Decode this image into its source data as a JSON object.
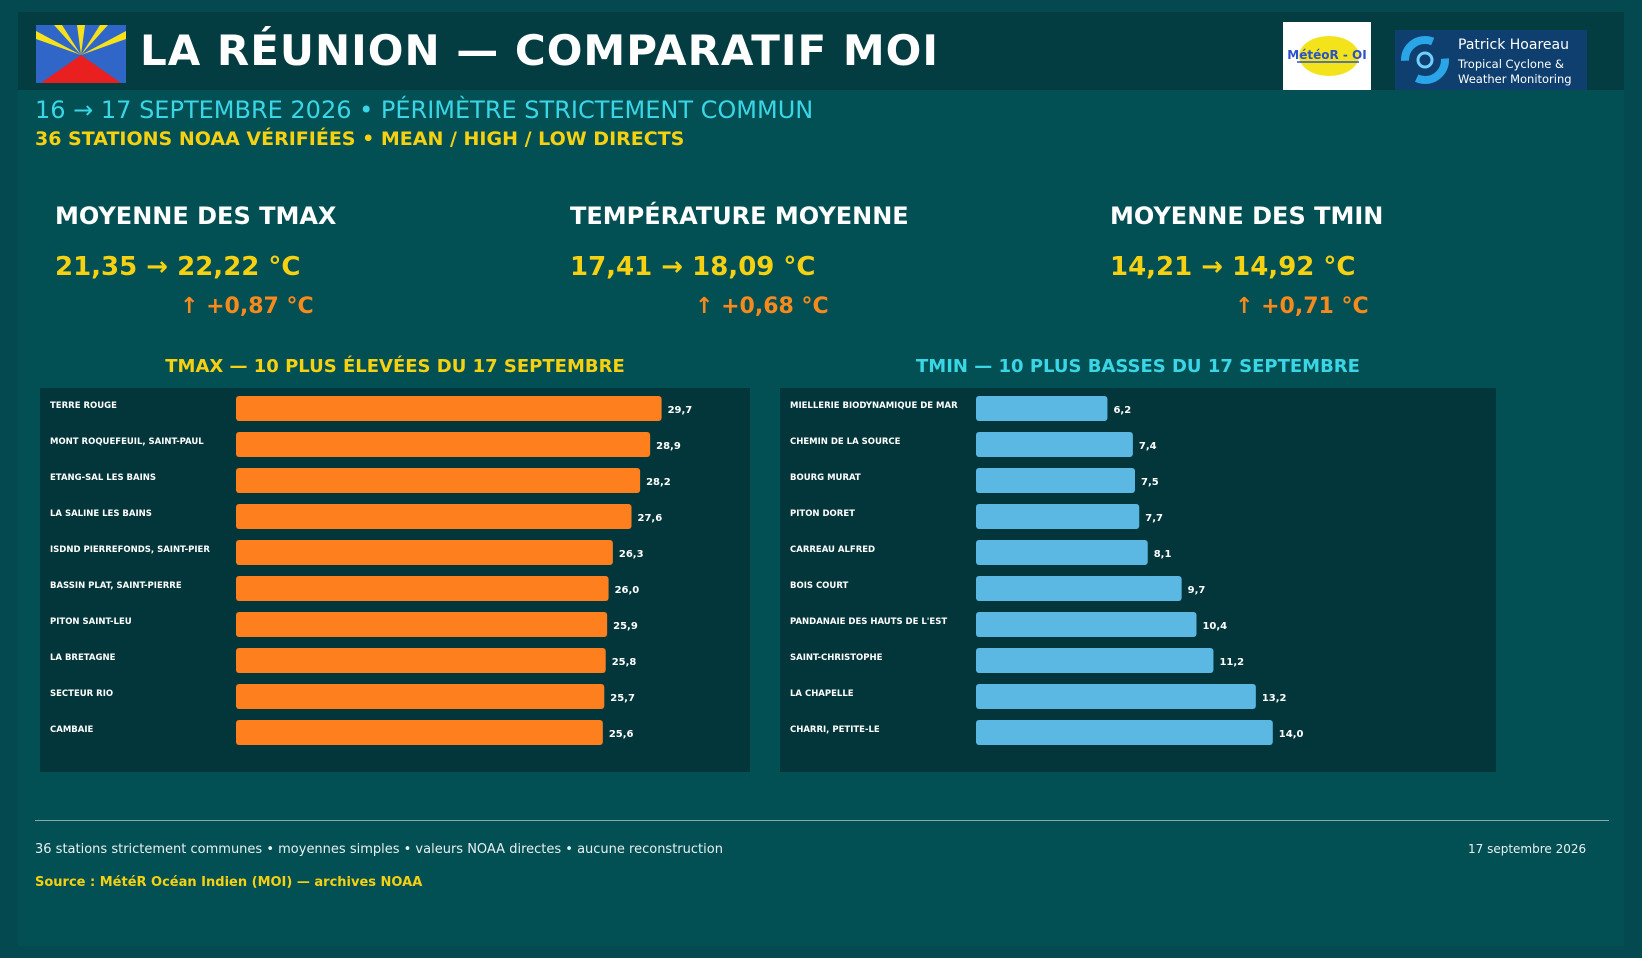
{
  "header": {
    "title": "LA RÉUNION — COMPARATIF MOI",
    "subtitle": "16 → 17 SEPTEMBRE 2026 • PÉRIMÈTRE STRICTEMENT COMMUN",
    "subtitle2": "36 STATIONS NOAA VÉRIFIÉES • MEAN / HIGH / LOW DIRECTS",
    "logo_moi_text": "MétéoR - OI",
    "logo_ph": {
      "name": "Patrick Hoareau",
      "tagline1": "Tropical Cyclone &",
      "tagline2": "Weather Monitoring"
    }
  },
  "kpis": [
    {
      "label": "MOYENNE DES TMAX",
      "value": "21,35 → 22,22 °C",
      "delta": "↑  +0,87 °C"
    },
    {
      "label": "TEMPÉRATURE MOYENNE",
      "value": "17,41 → 18,09 °C",
      "delta": "↑  +0,68 °C"
    },
    {
      "label": "MOYENNE DES TMIN",
      "value": "14,21 → 14,92 °C",
      "delta": "↑  +0,71 °C"
    }
  ],
  "colors": {
    "tmax_bar": "#fd7f1e",
    "tmin_bar": "#5bb8e2",
    "accent_yellow": "#f5d112",
    "accent_cyan": "#3ad6e6",
    "delta_orange": "#f78a1c"
  },
  "chart_data": [
    {
      "type": "bar",
      "orientation": "horizontal",
      "title": "TMAX — 10 PLUS ÉLEVÉES DU 17 SEPTEMBRE",
      "categories": [
        "TERRE ROUGE",
        "MONT ROQUEFEUIL, SAINT-PAUL",
        "ETANG-SAL LES BAINS",
        "LA SALINE LES BAINS",
        "ISDND PIERREFONDS, SAINT-PIER",
        "BASSIN PLAT, SAINT-PIERRE",
        "PITON SAINT-LEU",
        "LA BRETAGNE",
        "SECTEUR RIO",
        "CAMBAIE"
      ],
      "values": [
        29.7,
        28.9,
        28.2,
        27.6,
        26.3,
        26.0,
        25.9,
        25.8,
        25.7,
        25.6
      ],
      "labels": [
        "29,7",
        "28,9",
        "28,2",
        "27,6",
        "26,3",
        "26,0",
        "25,9",
        "25,8",
        "25,7",
        "25,6"
      ],
      "xlim": [
        0,
        35
      ]
    },
    {
      "type": "bar",
      "orientation": "horizontal",
      "title": "TMIN — 10 PLUS BASSES DU 17 SEPTEMBRE",
      "categories": [
        "MIELLERIE BIODYNAMIQUE DE MAR",
        "CHEMIN DE LA SOURCE",
        "BOURG MURAT",
        "PITON DORET",
        "CARREAU ALFRED",
        "BOIS COURT",
        "PANDANAIE DES HAUTS DE L'EST",
        "SAINT-CHRISTOPHE",
        "LA CHAPELLE",
        "CHARRI, PETITE-LE"
      ],
      "values": [
        6.2,
        7.4,
        7.5,
        7.7,
        8.1,
        9.7,
        10.4,
        11.2,
        13.2,
        14.0
      ],
      "labels": [
        "6,2",
        "7,4",
        "7,5",
        "7,7",
        "8,1",
        "9,7",
        "10,4",
        "11,2",
        "13,2",
        "14,0"
      ],
      "xlim": [
        0,
        17
      ]
    }
  ],
  "footer": {
    "note": "36 stations strictement communes • moyennes simples • valeurs NOAA directes • aucune reconstruction",
    "date": "17 septembre 2026",
    "source": "Source : MétéR Océan Indien (MOI) — archives NOAA"
  }
}
